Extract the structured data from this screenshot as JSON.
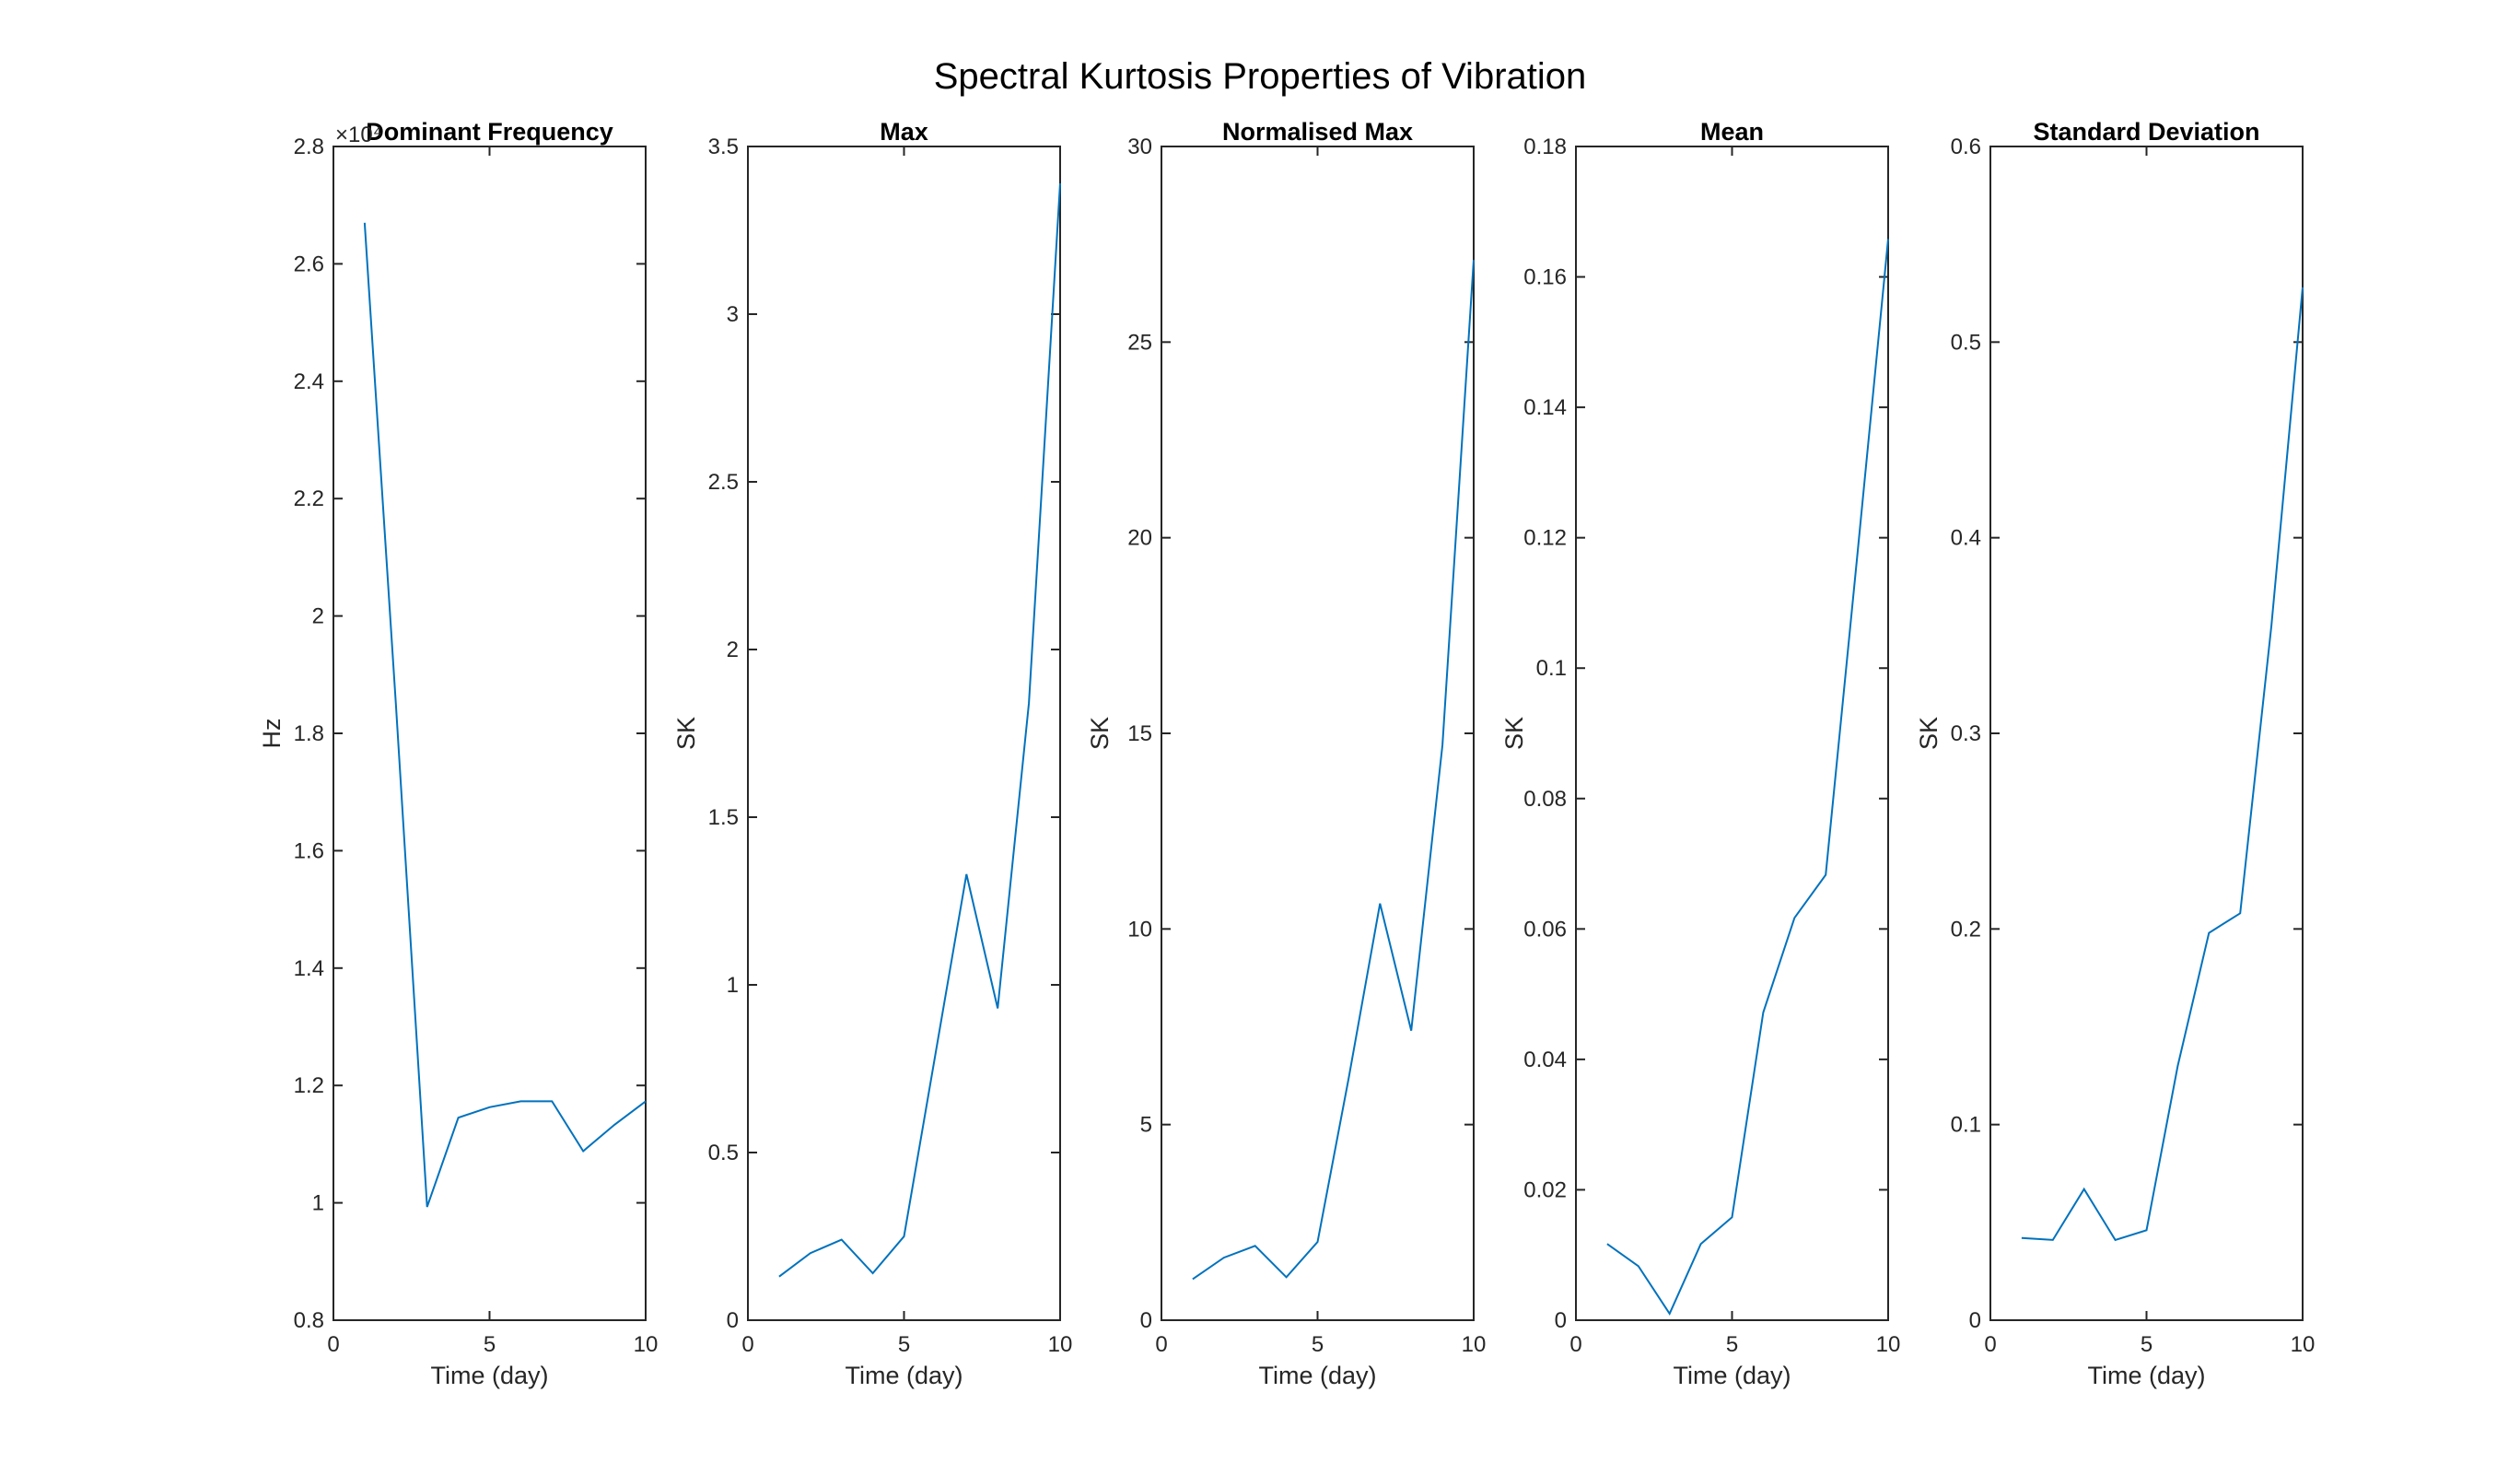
{
  "chart_data": {
    "title": "Spectral Kurtosis Properties of Vibration",
    "line_color": "#0072BD",
    "panels": [
      {
        "type": "line",
        "title": "Dominant Frequency",
        "xlabel": "Time (day)",
        "ylabel": "Hz",
        "y_exponent_label": "×10⁴",
        "xlim": [
          0,
          10
        ],
        "ylim": [
          8000,
          28000
        ],
        "xticks": [
          0,
          5,
          10
        ],
        "xtick_labels": [
          "0",
          "5",
          "10"
        ],
        "yticks": [
          8000,
          10000,
          12000,
          14000,
          16000,
          18000,
          20000,
          22000,
          24000,
          26000,
          28000
        ],
        "ytick_labels": [
          "0.8",
          "1",
          "1.2",
          "1.4",
          "1.6",
          "1.8",
          "2",
          "2.2",
          "2.4",
          "2.6",
          "2.8"
        ],
        "x": [
          1,
          2,
          3,
          4,
          5,
          6,
          7,
          8,
          9,
          10
        ],
        "y": [
          26700,
          18500,
          9930,
          11450,
          11630,
          11730,
          11730,
          10880,
          11330,
          11730
        ]
      },
      {
        "type": "line",
        "title": "Max",
        "xlabel": "Time (day)",
        "ylabel": "SK",
        "xlim": [
          0,
          10
        ],
        "ylim": [
          0,
          3.5
        ],
        "xticks": [
          0,
          5,
          10
        ],
        "xtick_labels": [
          "0",
          "5",
          "10"
        ],
        "yticks": [
          0,
          0.5,
          1,
          1.5,
          2,
          2.5,
          3,
          3.5
        ],
        "ytick_labels": [
          "0",
          "0.5",
          "1",
          "1.5",
          "2",
          "2.5",
          "3",
          "3.5"
        ],
        "x": [
          1,
          2,
          3,
          4,
          5,
          6,
          7,
          8,
          9,
          10
        ],
        "y": [
          0.13,
          0.2,
          0.24,
          0.14,
          0.25,
          0.79,
          1.33,
          0.93,
          1.84,
          3.39
        ]
      },
      {
        "type": "line",
        "title": "Normalised Max",
        "xlabel": "Time (day)",
        "ylabel": "SK",
        "xlim": [
          0,
          10
        ],
        "ylim": [
          0,
          30
        ],
        "xticks": [
          0,
          5,
          10
        ],
        "xtick_labels": [
          "0",
          "5",
          "10"
        ],
        "yticks": [
          0,
          5,
          10,
          15,
          20,
          25,
          30
        ],
        "ytick_labels": [
          "0",
          "5",
          "10",
          "15",
          "20",
          "25",
          "30"
        ],
        "x": [
          1,
          2,
          3,
          4,
          5,
          6,
          7,
          8,
          9,
          10
        ],
        "y": [
          1.05,
          1.6,
          1.9,
          1.1,
          2.0,
          6.2,
          10.65,
          7.4,
          14.7,
          27.1
        ]
      },
      {
        "type": "line",
        "title": "Mean",
        "xlabel": "Time (day)",
        "ylabel": "SK",
        "xlim": [
          0,
          10
        ],
        "ylim": [
          0,
          0.18
        ],
        "xticks": [
          0,
          5,
          10
        ],
        "xtick_labels": [
          "0",
          "5",
          "10"
        ],
        "yticks": [
          0,
          0.02,
          0.04,
          0.06,
          0.08,
          0.1,
          0.12,
          0.14,
          0.16,
          0.18
        ],
        "ytick_labels": [
          "0",
          "0.02",
          "0.04",
          "0.06",
          "0.08",
          "0.1",
          "0.12",
          "0.14",
          "0.16",
          "0.18"
        ],
        "x": [
          1,
          2,
          3,
          4,
          5,
          6,
          7,
          8,
          9,
          10
        ],
        "y": [
          0.0117,
          0.0083,
          0.001,
          0.0117,
          0.0158,
          0.0472,
          0.0617,
          0.0683,
          0.1167,
          0.1658
        ]
      },
      {
        "type": "line",
        "title": "Standard Deviation",
        "xlabel": "Time (day)",
        "ylabel": "SK",
        "xlim": [
          0,
          10
        ],
        "ylim": [
          0,
          0.6
        ],
        "xticks": [
          0,
          5,
          10
        ],
        "xtick_labels": [
          "0",
          "5",
          "10"
        ],
        "yticks": [
          0,
          0.1,
          0.2,
          0.3,
          0.4,
          0.5,
          0.6
        ],
        "ytick_labels": [
          "0",
          "0.1",
          "0.2",
          "0.3",
          "0.4",
          "0.5",
          "0.6"
        ],
        "x": [
          1,
          2,
          3,
          4,
          5,
          6,
          7,
          8,
          9,
          10
        ],
        "y": [
          0.042,
          0.041,
          0.067,
          0.041,
          0.046,
          0.13,
          0.198,
          0.208,
          0.355,
          0.528
        ]
      }
    ]
  }
}
